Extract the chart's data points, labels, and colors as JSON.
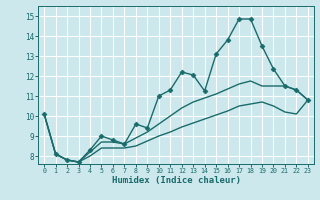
{
  "xlabel": "Humidex (Indice chaleur)",
  "bg_color": "#cce8ec",
  "line_color": "#1a6b6b",
  "grid_color": "#ffffff",
  "xlim": [
    -0.5,
    23.5
  ],
  "ylim": [
    7.6,
    15.5
  ],
  "yticks": [
    8,
    9,
    10,
    11,
    12,
    13,
    14,
    15
  ],
  "xticks": [
    0,
    1,
    2,
    3,
    4,
    5,
    6,
    7,
    8,
    9,
    10,
    11,
    12,
    13,
    14,
    15,
    16,
    17,
    18,
    19,
    20,
    21,
    22,
    23
  ],
  "series": [
    {
      "x": [
        0,
        1,
        2,
        3,
        4,
        5,
        6,
        7,
        8,
        9,
        10,
        11,
        12,
        13,
        14,
        15,
        16,
        17,
        18,
        19,
        20,
        21,
        22,
        23
      ],
      "y": [
        10.1,
        8.1,
        7.8,
        7.7,
        8.3,
        9.0,
        8.8,
        8.6,
        9.6,
        9.4,
        11.0,
        11.3,
        12.2,
        12.05,
        11.25,
        13.1,
        13.8,
        14.85,
        14.85,
        13.5,
        12.35,
        11.5,
        11.3,
        10.8
      ],
      "marker": "D",
      "markersize": 2.5,
      "linewidth": 1.0
    },
    {
      "x": [
        0,
        1,
        2,
        3,
        4,
        5,
        6,
        7,
        8,
        9,
        10,
        11,
        12,
        13,
        14,
        15,
        16,
        17,
        18,
        19,
        20,
        21,
        22,
        23
      ],
      "y": [
        10.1,
        8.1,
        7.8,
        7.7,
        8.2,
        8.7,
        8.7,
        8.6,
        8.9,
        9.2,
        9.6,
        10.0,
        10.4,
        10.7,
        10.9,
        11.1,
        11.35,
        11.6,
        11.75,
        11.5,
        11.5,
        11.5,
        11.3,
        10.8
      ],
      "marker": null,
      "markersize": 0,
      "linewidth": 1.0
    },
    {
      "x": [
        0,
        1,
        2,
        3,
        4,
        5,
        6,
        7,
        8,
        9,
        10,
        11,
        12,
        13,
        14,
        15,
        16,
        17,
        18,
        19,
        20,
        21,
        22,
        23
      ],
      "y": [
        10.1,
        8.1,
        7.8,
        7.7,
        8.0,
        8.4,
        8.4,
        8.4,
        8.5,
        8.75,
        9.0,
        9.2,
        9.45,
        9.65,
        9.85,
        10.05,
        10.25,
        10.5,
        10.6,
        10.7,
        10.5,
        10.2,
        10.1,
        10.8
      ],
      "marker": null,
      "markersize": 0,
      "linewidth": 1.0
    }
  ]
}
